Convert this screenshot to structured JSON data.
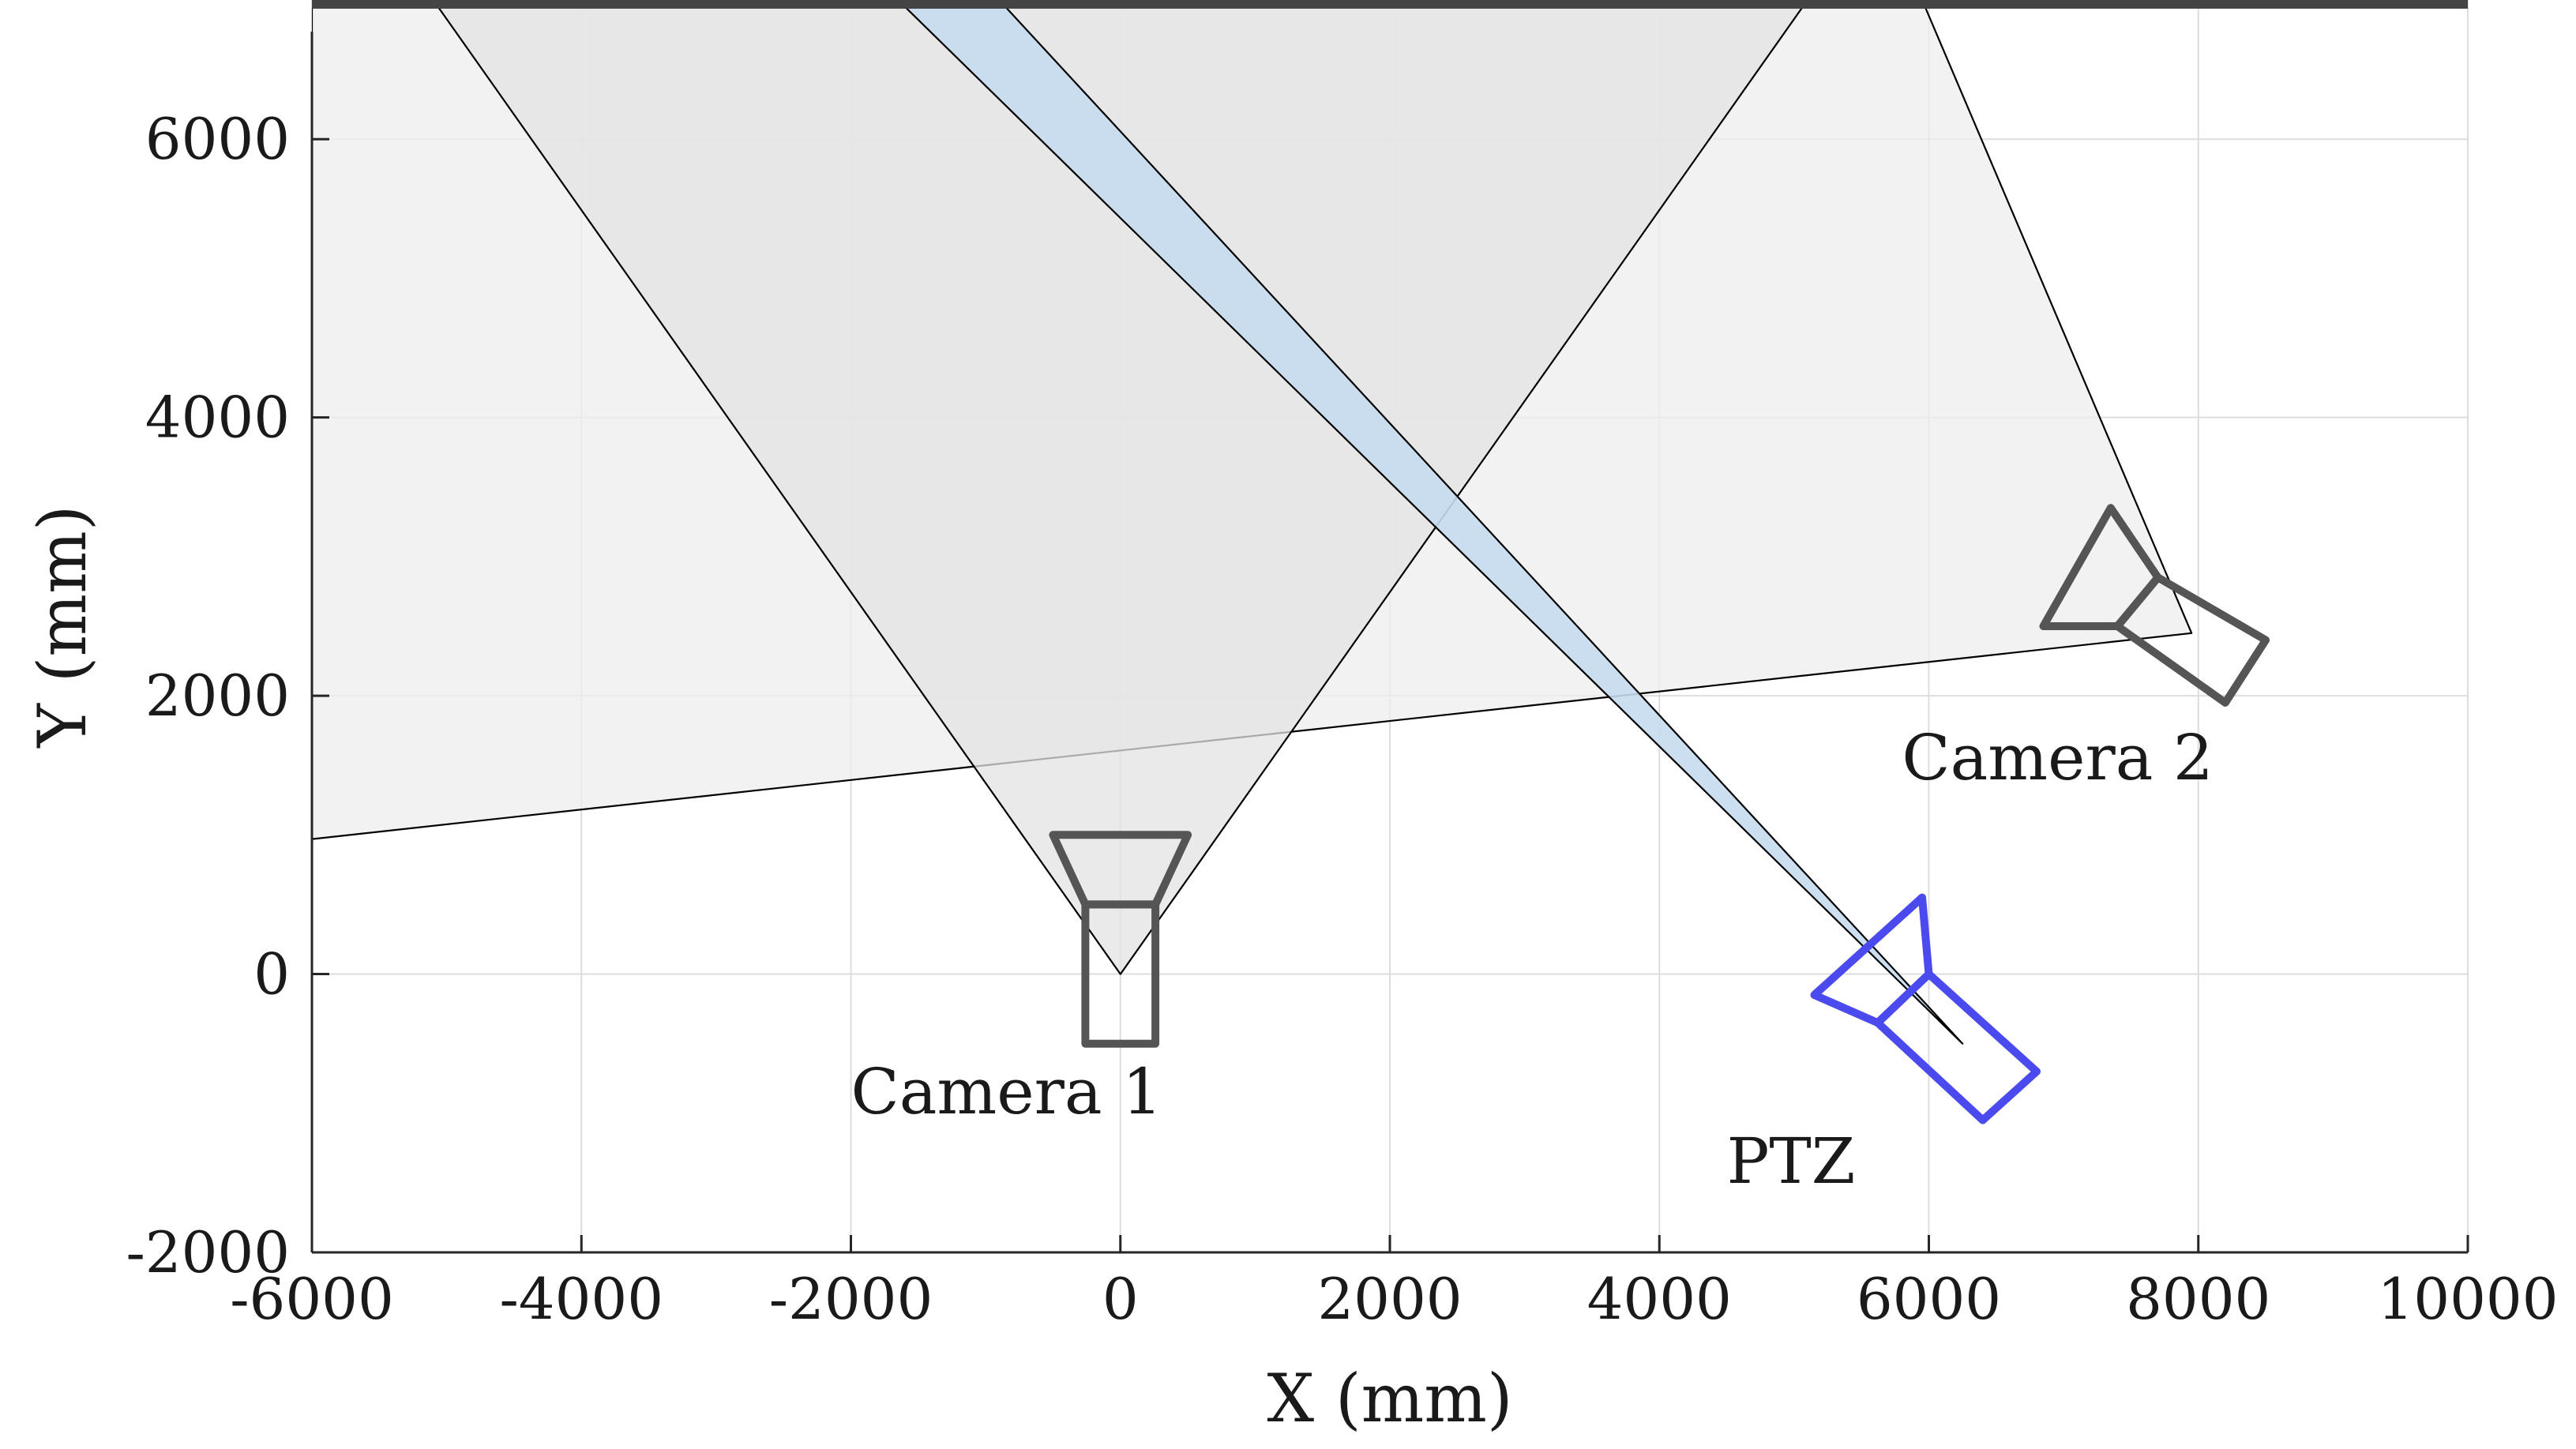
{
  "chart_data": {
    "type": "diagram",
    "xlabel": "X (mm)",
    "ylabel": "Y (mm)",
    "xlim": [
      -6000,
      10000
    ],
    "ylim": [
      -2000,
      7000
    ],
    "xticks": [
      -6000,
      -4000,
      -2000,
      0,
      2000,
      4000,
      6000,
      8000,
      10000
    ],
    "yticks": [
      -2000,
      0,
      2000,
      4000,
      6000
    ],
    "grid": true,
    "wall": {
      "y": 7000,
      "x": [
        -6000,
        10000
      ],
      "color": "#444444"
    },
    "cameras": [
      {
        "name": "Camera 1",
        "label": "Camera 1",
        "position": [
          0,
          0
        ],
        "label_anchor": [
          -2000,
          -1000
        ],
        "color": "#555555",
        "fov_polygon": [
          [
            0,
            0
          ],
          [
            -5100,
            7000
          ],
          [
            5100,
            7000
          ]
        ],
        "fov_fill": "#e3e3e3",
        "icon_lens": [
          [
            -500,
            1000
          ],
          [
            500,
            1000
          ],
          [
            260,
            500
          ],
          [
            -260,
            500
          ]
        ],
        "icon_body": [
          [
            -260,
            500
          ],
          [
            260,
            500
          ],
          [
            260,
            -500
          ],
          [
            -260,
            -500
          ]
        ]
      },
      {
        "name": "Camera 2",
        "label": "Camera 2",
        "position": [
          7950,
          2450
        ],
        "label_anchor": [
          5800,
          1400
        ],
        "color": "#555555",
        "fov_polygon": [
          [
            7950,
            2450
          ],
          [
            5950,
            7000
          ],
          [
            -6000,
            7000
          ],
          [
            -6000,
            970
          ]
        ],
        "fov_fill": "#eeeeee",
        "icon_lens": [
          [
            7350,
            3350
          ],
          [
            6850,
            2500
          ],
          [
            7400,
            2500
          ],
          [
            7700,
            2850
          ]
        ],
        "icon_body": [
          [
            7700,
            2850
          ],
          [
            8500,
            2400
          ],
          [
            8200,
            1950
          ],
          [
            7400,
            2500
          ]
        ]
      },
      {
        "name": "PTZ",
        "label": "PTZ",
        "position": [
          6250,
          -500
        ],
        "label_anchor": [
          4500,
          -1500
        ],
        "color": "#4a4aee",
        "fov_polygon": [
          [
            6250,
            -500
          ],
          [
            -1650,
            7000
          ],
          [
            -900,
            7000
          ]
        ],
        "fov_fill": "#c6dcef",
        "icon_lens": [
          [
            5950,
            550
          ],
          [
            5150,
            -150
          ],
          [
            5620,
            -350
          ],
          [
            6000,
            0
          ]
        ],
        "icon_body": [
          [
            6000,
            0
          ],
          [
            5620,
            -350
          ],
          [
            6400,
            -1050
          ],
          [
            6800,
            -700
          ]
        ]
      }
    ]
  }
}
